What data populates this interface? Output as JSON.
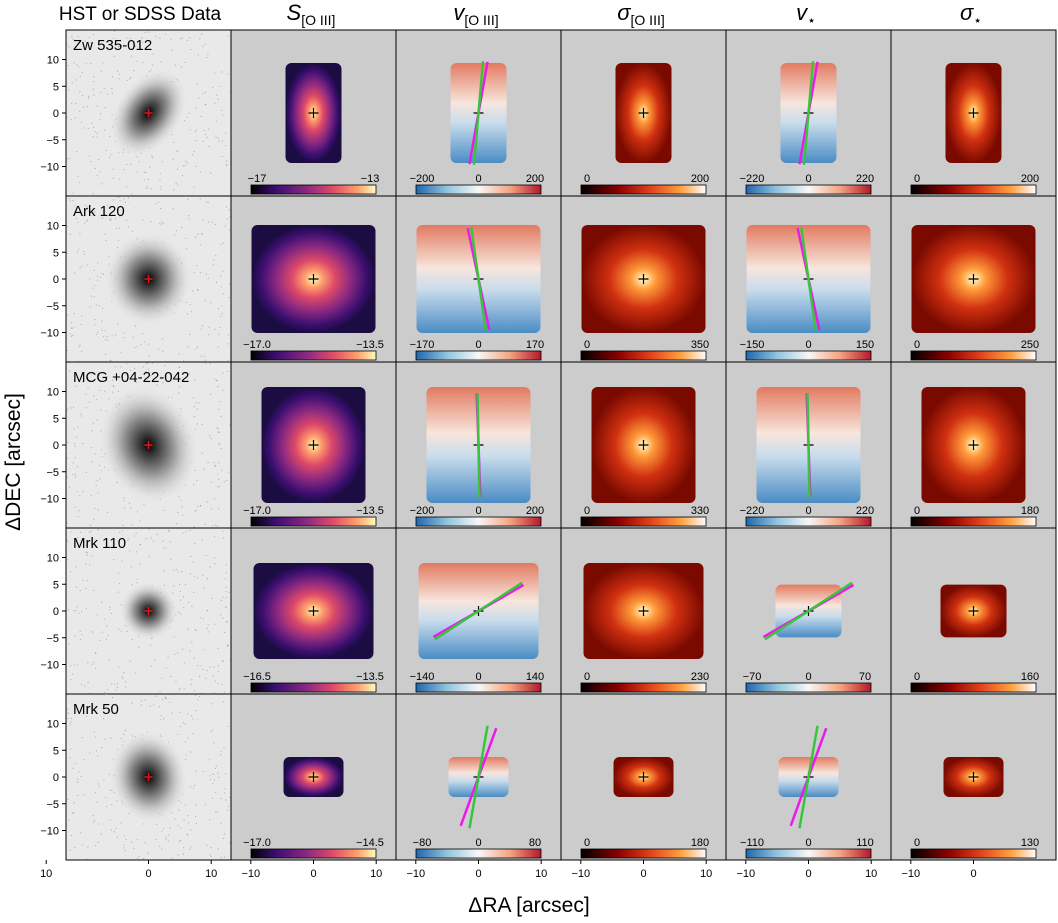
{
  "figure": {
    "col_headers": [
      "HST or SDSS Data",
      "S",
      "v",
      "σ",
      "v",
      "σ"
    ],
    "col_header_subs": [
      "",
      "[O III]",
      "[O III]",
      "[O III]",
      "⋆",
      "⋆"
    ],
    "xlabel": "ΔRA [arcsec]",
    "ylabel": "ΔDEC [arcsec]",
    "x_ticks": [
      "10",
      "0",
      "−10"
    ],
    "y_ticks": [
      "10",
      "5",
      "0",
      "−5",
      "−10"
    ]
  },
  "rows": [
    {
      "name": "Zw 535-012",
      "cbar": [
        [
          "−17",
          "−13"
        ],
        [
          "−200",
          "0",
          "200"
        ],
        [
          "0",
          "200"
        ],
        [
          "−220",
          "0",
          "220"
        ],
        [
          "0",
          "200"
        ]
      ]
    },
    {
      "name": "Ark 120",
      "cbar": [
        [
          "−17.0",
          "−13.5"
        ],
        [
          "−170",
          "0",
          "170"
        ],
        [
          "0",
          "350"
        ],
        [
          "−150",
          "0",
          "150"
        ],
        [
          "0",
          "250"
        ]
      ]
    },
    {
      "name": "MCG +04-22-042",
      "cbar": [
        [
          "−17.0",
          "−13.5"
        ],
        [
          "−200",
          "0",
          "200"
        ],
        [
          "0",
          "330"
        ],
        [
          "−220",
          "0",
          "220"
        ],
        [
          "0",
          "180"
        ]
      ]
    },
    {
      "name": "Mrk 110",
      "cbar": [
        [
          "−16.5",
          "−13.5"
        ],
        [
          "−140",
          "0",
          "140"
        ],
        [
          "0",
          "230"
        ],
        [
          "−70",
          "0",
          "70"
        ],
        [
          "0",
          "160"
        ]
      ]
    },
    {
      "name": "Mrk 50",
      "cbar": [
        [
          "−17.0",
          "−14.5"
        ],
        [
          "−80",
          "0",
          "80"
        ],
        [
          "0",
          "180"
        ],
        [
          "−110",
          "0",
          "110"
        ],
        [
          "0",
          "130"
        ]
      ]
    }
  ],
  "colors": {
    "panel_bg": "#cccccc",
    "magenta_line": "#e81ce8",
    "green_line": "#39c43c",
    "center_mark_hst": "#e0141a"
  }
}
